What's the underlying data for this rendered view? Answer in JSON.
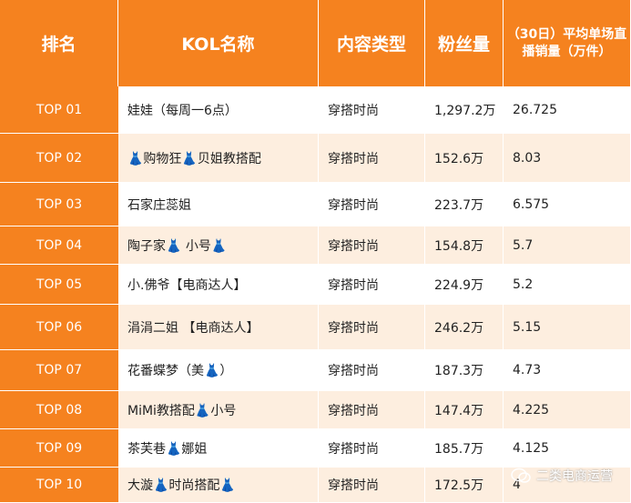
{
  "table": {
    "header": [
      "排名",
      "KOL名称",
      "内容类型",
      "粉丝量",
      "（30日）平均单场直播销量（万件）"
    ],
    "rows": [
      [
        "TOP 01",
        "娃娃（每周一6点）",
        "穿搭时尚",
        "1,297.2万",
        "26.725"
      ],
      [
        "TOP 02",
        "👗购物狂👗贝姐教搭配",
        "穿搭时尚",
        "152.6万",
        "8.03"
      ],
      [
        "TOP 03",
        "石家庄蕊姐",
        "穿搭时尚",
        "223.7万",
        "6.575"
      ],
      [
        "TOP 04",
        "陶子家👗 小号👗",
        "穿搭时尚",
        "154.8万",
        "5.7"
      ],
      [
        "TOP 05",
        "小.佛爷【电商达人】",
        "穿搭时尚",
        "224.9万",
        "5.2"
      ],
      [
        "TOP 06",
        "涓涓二姐 【电商达人】",
        "穿搭时尚",
        "246.2万",
        "5.15"
      ],
      [
        "TOP 07",
        "花番蝶梦（美👗）",
        "穿搭时尚",
        "187.3万",
        "4.73"
      ],
      [
        "TOP 08",
        "MiMi教搭配👗小号",
        "穿搭时尚",
        "147.4万",
        "4.225"
      ],
      [
        "TOP 09",
        "茶芙巷👗娜姐",
        "穿搭时尚",
        "185.7万",
        "4.125"
      ],
      [
        "TOP 10",
        "大漩👗时尚搭配👗",
        "穿搭时尚",
        "172.5万",
        "4"
      ]
    ]
  },
  "watermark": "二类电商运营"
}
